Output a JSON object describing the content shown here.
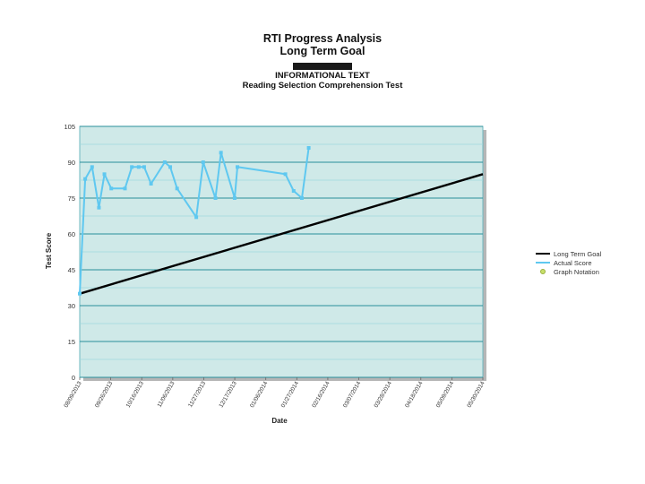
{
  "header": {
    "title": "RTI Progress Analysis",
    "subtitle": "Long Term Goal",
    "line3": "INFORMATIONAL TEXT",
    "line4": "Reading Selection Comprehension Test"
  },
  "chart_data": {
    "type": "line",
    "xlabel": "Date",
    "ylabel": "Test Score",
    "ylim": [
      0,
      105
    ],
    "yticks": [
      0,
      15,
      30,
      45,
      60,
      75,
      90,
      105
    ],
    "grid": true,
    "legend_placement": "right",
    "x_tick_labels": [
      "08/09/2013",
      "09/26/2013",
      "10/16/2013",
      "11/06/2013",
      "11/27/2013",
      "12/17/2013",
      "01/06/2014",
      "01/27/2014",
      "02/16/2014",
      "03/07/2014",
      "03/28/2014",
      "04/18/2014",
      "05/09/2014",
      "05/30/2014"
    ],
    "x_range_days": [
      0,
      294
    ],
    "series": [
      {
        "name": "Long Term Goal",
        "color": "#000000",
        "points": [
          [
            0,
            35
          ],
          [
            294,
            85
          ]
        ]
      },
      {
        "name": "Actual Score",
        "color": "#5fc8f0",
        "points": [
          [
            0,
            35
          ],
          [
            4,
            83
          ],
          [
            9,
            88
          ],
          [
            14,
            71
          ],
          [
            18,
            85
          ],
          [
            23,
            79
          ],
          [
            33,
            79
          ],
          [
            38,
            88
          ],
          [
            43,
            88
          ],
          [
            47,
            88
          ],
          [
            52,
            81
          ],
          [
            62,
            90
          ],
          [
            66,
            88
          ],
          [
            71,
            79
          ],
          [
            85,
            67
          ],
          [
            90,
            90
          ],
          [
            99,
            75
          ],
          [
            103,
            94
          ],
          [
            113,
            75
          ],
          [
            115,
            88
          ],
          [
            150,
            85
          ],
          [
            156,
            78
          ],
          [
            162,
            75
          ],
          [
            167,
            96
          ]
        ]
      }
    ],
    "legend": [
      "Long Term Goal",
      "Actual Score",
      "Graph Notation"
    ],
    "colors": {
      "plot_bg": "#cfe9e8",
      "grid_major": "#2a8f9a",
      "grid_minor": "#9fd8de",
      "goal": "#000000",
      "actual": "#5fc8f0",
      "notation": "#c8e06a"
    }
  }
}
